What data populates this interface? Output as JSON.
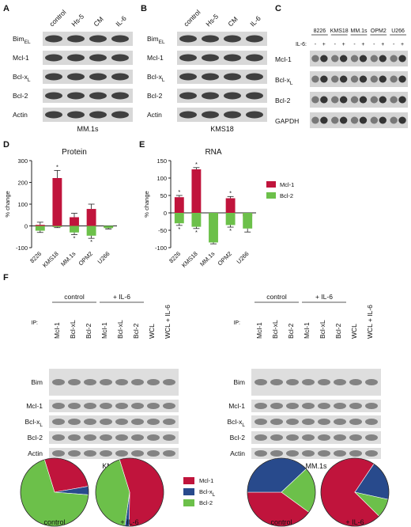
{
  "panels": {
    "A": {
      "letter": "A",
      "lanes": [
        "control",
        "Hs-5",
        "CM",
        "IL-6"
      ],
      "rows": [
        {
          "label": "Bim",
          "sub": "EL"
        },
        {
          "label": "Mcl-1",
          "sub": ""
        },
        {
          "label": "Bcl-x",
          "sub": "L"
        },
        {
          "label": "Bcl-2",
          "sub": ""
        },
        {
          "label": "Actin",
          "sub": ""
        }
      ],
      "caption": "MM.1s"
    },
    "B": {
      "letter": "B",
      "lanes": [
        "control",
        "Hs-5",
        "CM",
        "IL-6"
      ],
      "rows": [
        {
          "label": "Bim",
          "sub": "EL"
        },
        {
          "label": "Mcl-1",
          "sub": ""
        },
        {
          "label": "Bcl-x",
          "sub": "L"
        },
        {
          "label": "Bcl-2",
          "sub": ""
        },
        {
          "label": "Actin",
          "sub": ""
        }
      ],
      "caption": "KMS18"
    },
    "C": {
      "letter": "C",
      "cell_lines": [
        "8226",
        "KMS18",
        "MM.1s",
        "OPM2",
        "U266"
      ],
      "treatment_label": "IL-6:",
      "signs": [
        "-",
        "+"
      ],
      "rows": [
        {
          "label": "Mcl-1",
          "sub": ""
        },
        {
          "label": "Bcl-x",
          "sub": "L"
        },
        {
          "label": "Bcl-2",
          "sub": ""
        },
        {
          "label": "GAPDH",
          "sub": ""
        }
      ]
    },
    "D": {
      "letter": "D"
    },
    "E": {
      "letter": "E"
    },
    "F": {
      "letter": "F",
      "groups": [
        "control",
        "+ IL-6"
      ],
      "ip_label": "IP:",
      "lanes": [
        "Mcl-1",
        "Bcl-xL",
        "Bcl-2",
        "Mcl-1",
        "Bcl-xL",
        "Bcl-2",
        "WCL",
        "WCL + IL-6"
      ],
      "rows": [
        {
          "label": "Bim",
          "sub": ""
        },
        {
          "label": "Mcl-1",
          "sub": ""
        },
        {
          "label": "Bcl-x",
          "sub": "L"
        },
        {
          "label": "Bcl-2",
          "sub": ""
        },
        {
          "label": "Actin",
          "sub": ""
        }
      ],
      "left_caption": "KMS18",
      "right_caption": "MM.1s",
      "pie_labels": [
        "control",
        "+ IL-6",
        "control",
        "+ IL-6"
      ],
      "legend": [
        "Mcl-1",
        "Bcl-xL",
        "Bcl-2"
      ]
    }
  },
  "chart_data": [
    {
      "type": "bar",
      "title": "Protein",
      "ylabel": "% change",
      "categories": [
        "8226",
        "KMS18",
        "MM.1s",
        "OPM2",
        "U266"
      ],
      "ylim": [
        -100,
        300
      ],
      "yticks": [
        -100,
        0,
        100,
        200,
        300
      ],
      "series": [
        {
          "name": "Mcl-1",
          "color": "#c0143c",
          "values": [
            5,
            220,
            40,
            78,
            -5
          ],
          "errors": [
            12,
            35,
            18,
            22,
            4
          ]
        },
        {
          "name": "Bcl-2",
          "color": "#6cc04a",
          "values": [
            -22,
            -5,
            -30,
            -45,
            -10
          ],
          "errors": [
            8,
            3,
            10,
            12,
            4
          ]
        }
      ],
      "significance": {
        "Mcl-1": [
          false,
          true,
          false,
          false,
          false
        ],
        "Bcl-2": [
          false,
          false,
          true,
          true,
          false
        ]
      }
    },
    {
      "type": "bar",
      "title": "RNA",
      "ylabel": "% change",
      "categories": [
        "8226",
        "KMS18",
        "MM.1s",
        "OPM2",
        "U266"
      ],
      "ylim": [
        -100,
        150
      ],
      "yticks": [
        -100,
        -50,
        0,
        50,
        100,
        150
      ],
      "series": [
        {
          "name": "Mcl-1",
          "color": "#c0143c",
          "values": [
            45,
            125,
            -20,
            42,
            -10
          ],
          "errors": [
            5,
            5,
            6,
            5,
            4
          ]
        },
        {
          "name": "Bcl-2",
          "color": "#6cc04a",
          "values": [
            -30,
            -40,
            -85,
            -35,
            -45
          ],
          "errors": [
            6,
            5,
            4,
            6,
            10
          ]
        }
      ],
      "significance": {
        "Mcl-1": [
          true,
          true,
          false,
          true,
          true
        ],
        "Bcl-2": [
          true,
          true,
          false,
          true,
          false
        ]
      },
      "legend_position": "right"
    },
    {
      "type": "pie",
      "title": "",
      "categories": [
        "Mcl-1",
        "Bcl-xL",
        "Bcl-2"
      ],
      "colors": [
        "#c0143c",
        "#284a8c",
        "#6cc04a"
      ],
      "pies": [
        {
          "name": "KMS18 control",
          "values": [
            27,
            4,
            69
          ]
        },
        {
          "name": "KMS18 + IL-6",
          "values": [
            55,
            2,
            43
          ]
        },
        {
          "name": "MM.1s control",
          "values": [
            40,
            38,
            22
          ]
        },
        {
          "name": "MM.1s + IL-6",
          "values": [
            72,
            19,
            9
          ]
        }
      ]
    }
  ]
}
